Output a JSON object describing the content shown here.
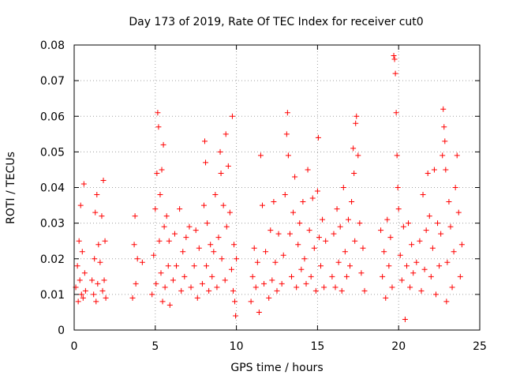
{
  "chart_data": {
    "type": "scatter",
    "title": "Day 173 of 2019, Rate Of TEC Index for receiver cut0",
    "xlabel": "GPS time / hours",
    "ylabel": "ROTI / TECUs",
    "xlim": [
      0,
      25
    ],
    "ylim": [
      0,
      0.08
    ],
    "x_ticks": [
      0,
      5,
      10,
      15,
      20,
      25
    ],
    "x_tick_labels": [
      "0",
      "5",
      "10",
      "15",
      "20",
      "25"
    ],
    "y_ticks": [
      0,
      0.01,
      0.02,
      0.03,
      0.04,
      0.05,
      0.06,
      0.07,
      0.08
    ],
    "y_tick_labels": [
      "0",
      "0.01",
      "0.02",
      "0.03",
      "0.04",
      "0.05",
      "0.06",
      "0.07",
      "0.08"
    ],
    "grid": true,
    "marker": "+",
    "color": "#ff0000",
    "series": [
      {
        "name": "ROTI",
        "points": [
          [
            0.1,
            0.012
          ],
          [
            0.2,
            0.018
          ],
          [
            0.25,
            0.008
          ],
          [
            0.3,
            0.025
          ],
          [
            0.35,
            0.014
          ],
          [
            0.4,
            0.035
          ],
          [
            0.45,
            0.01
          ],
          [
            0.5,
            0.022
          ],
          [
            0.55,
            0.009
          ],
          [
            0.6,
            0.041
          ],
          [
            0.65,
            0.016
          ],
          [
            0.7,
            0.011
          ],
          [
            1.1,
            0.014
          ],
          [
            1.2,
            0.01
          ],
          [
            1.25,
            0.02
          ],
          [
            1.3,
            0.033
          ],
          [
            1.35,
            0.008
          ],
          [
            1.4,
            0.038
          ],
          [
            1.45,
            0.013
          ],
          [
            1.5,
            0.024
          ],
          [
            1.6,
            0.019
          ],
          [
            1.7,
            0.032
          ],
          [
            1.75,
            0.011
          ],
          [
            1.8,
            0.042
          ],
          [
            1.85,
            0.014
          ],
          [
            1.9,
            0.025
          ],
          [
            1.95,
            0.009
          ],
          [
            3.6,
            0.009
          ],
          [
            3.7,
            0.024
          ],
          [
            3.75,
            0.032
          ],
          [
            3.8,
            0.013
          ],
          [
            3.9,
            0.02
          ],
          [
            4.2,
            0.019
          ],
          [
            4.8,
            0.01
          ],
          [
            4.9,
            0.021
          ],
          [
            5.0,
            0.034
          ],
          [
            5.05,
            0.013
          ],
          [
            5.1,
            0.044
          ],
          [
            5.15,
            0.061
          ],
          [
            5.2,
            0.057
          ],
          [
            5.25,
            0.025
          ],
          [
            5.3,
            0.038
          ],
          [
            5.35,
            0.016
          ],
          [
            5.4,
            0.045
          ],
          [
            5.45,
            0.008
          ],
          [
            5.5,
            0.052
          ],
          [
            5.55,
            0.029
          ],
          [
            5.6,
            0.012
          ],
          [
            5.7,
            0.032
          ],
          [
            5.8,
            0.018
          ],
          [
            5.85,
            0.025
          ],
          [
            5.9,
            0.007
          ],
          [
            6.1,
            0.014
          ],
          [
            6.2,
            0.027
          ],
          [
            6.3,
            0.018
          ],
          [
            6.5,
            0.034
          ],
          [
            6.6,
            0.011
          ],
          [
            6.7,
            0.022
          ],
          [
            6.8,
            0.015
          ],
          [
            6.9,
            0.026
          ],
          [
            7.1,
            0.029
          ],
          [
            7.2,
            0.012
          ],
          [
            7.4,
            0.018
          ],
          [
            7.5,
            0.028
          ],
          [
            7.6,
            0.009
          ],
          [
            7.7,
            0.023
          ],
          [
            7.9,
            0.013
          ],
          [
            8.0,
            0.035
          ],
          [
            8.05,
            0.053
          ],
          [
            8.1,
            0.047
          ],
          [
            8.15,
            0.018
          ],
          [
            8.2,
            0.03
          ],
          [
            8.3,
            0.011
          ],
          [
            8.4,
            0.024
          ],
          [
            8.5,
            0.015
          ],
          [
            8.6,
            0.022
          ],
          [
            8.7,
            0.038
          ],
          [
            8.8,
            0.012
          ],
          [
            8.9,
            0.026
          ],
          [
            9.0,
            0.05
          ],
          [
            9.05,
            0.044
          ],
          [
            9.1,
            0.02
          ],
          [
            9.2,
            0.035
          ],
          [
            9.3,
            0.014
          ],
          [
            9.35,
            0.055
          ],
          [
            9.4,
            0.029
          ],
          [
            9.5,
            0.046
          ],
          [
            9.6,
            0.033
          ],
          [
            9.7,
            0.017
          ],
          [
            9.75,
            0.06
          ],
          [
            9.8,
            0.011
          ],
          [
            9.85,
            0.024
          ],
          [
            9.9,
            0.008
          ],
          [
            9.95,
            0.004
          ],
          [
            10.0,
            0.02
          ],
          [
            10.9,
            0.008
          ],
          [
            11.0,
            0.015
          ],
          [
            11.1,
            0.023
          ],
          [
            11.2,
            0.012
          ],
          [
            11.3,
            0.019
          ],
          [
            11.4,
            0.005
          ],
          [
            11.5,
            0.049
          ],
          [
            11.6,
            0.035
          ],
          [
            11.7,
            0.013
          ],
          [
            11.8,
            0.022
          ],
          [
            12.0,
            0.009
          ],
          [
            12.1,
            0.028
          ],
          [
            12.2,
            0.014
          ],
          [
            12.3,
            0.036
          ],
          [
            12.4,
            0.019
          ],
          [
            12.5,
            0.011
          ],
          [
            12.6,
            0.027
          ],
          [
            12.8,
            0.013
          ],
          [
            12.9,
            0.021
          ],
          [
            13.0,
            0.038
          ],
          [
            13.1,
            0.055
          ],
          [
            13.15,
            0.061
          ],
          [
            13.2,
            0.049
          ],
          [
            13.3,
            0.027
          ],
          [
            13.4,
            0.015
          ],
          [
            13.5,
            0.033
          ],
          [
            13.6,
            0.043
          ],
          [
            13.7,
            0.012
          ],
          [
            13.8,
            0.024
          ],
          [
            13.9,
            0.03
          ],
          [
            14.0,
            0.017
          ],
          [
            14.1,
            0.036
          ],
          [
            14.2,
            0.02
          ],
          [
            14.3,
            0.013
          ],
          [
            14.4,
            0.045
          ],
          [
            14.5,
            0.028
          ],
          [
            14.6,
            0.015
          ],
          [
            14.7,
            0.037
          ],
          [
            14.8,
            0.023
          ],
          [
            14.9,
            0.011
          ],
          [
            15.0,
            0.039
          ],
          [
            15.05,
            0.054
          ],
          [
            15.1,
            0.026
          ],
          [
            15.2,
            0.018
          ],
          [
            15.3,
            0.031
          ],
          [
            15.4,
            0.012
          ],
          [
            15.5,
            0.025
          ],
          [
            15.9,
            0.015
          ],
          [
            16.0,
            0.027
          ],
          [
            16.1,
            0.012
          ],
          [
            16.2,
            0.034
          ],
          [
            16.3,
            0.019
          ],
          [
            16.4,
            0.029
          ],
          [
            16.5,
            0.011
          ],
          [
            16.6,
            0.04
          ],
          [
            16.7,
            0.022
          ],
          [
            16.8,
            0.015
          ],
          [
            16.9,
            0.031
          ],
          [
            17.0,
            0.018
          ],
          [
            17.1,
            0.036
          ],
          [
            17.2,
            0.051
          ],
          [
            17.25,
            0.044
          ],
          [
            17.3,
            0.025
          ],
          [
            17.35,
            0.058
          ],
          [
            17.4,
            0.06
          ],
          [
            17.5,
            0.049
          ],
          [
            17.6,
            0.03
          ],
          [
            17.7,
            0.016
          ],
          [
            17.8,
            0.023
          ],
          [
            17.9,
            0.011
          ],
          [
            18.9,
            0.028
          ],
          [
            19.0,
            0.015
          ],
          [
            19.1,
            0.022
          ],
          [
            19.2,
            0.009
          ],
          [
            19.3,
            0.031
          ],
          [
            19.4,
            0.018
          ],
          [
            19.5,
            0.026
          ],
          [
            19.6,
            0.012
          ],
          [
            19.7,
            0.077
          ],
          [
            19.75,
            0.076
          ],
          [
            19.8,
            0.072
          ],
          [
            19.85,
            0.061
          ],
          [
            19.9,
            0.049
          ],
          [
            19.95,
            0.04
          ],
          [
            20.0,
            0.034
          ],
          [
            20.1,
            0.021
          ],
          [
            20.2,
            0.014
          ],
          [
            20.3,
            0.029
          ],
          [
            20.4,
            0.003
          ],
          [
            20.5,
            0.018
          ],
          [
            20.6,
            0.03
          ],
          [
            20.7,
            0.012
          ],
          [
            20.8,
            0.024
          ],
          [
            20.9,
            0.016
          ],
          [
            21.1,
            0.019
          ],
          [
            21.3,
            0.025
          ],
          [
            21.4,
            0.011
          ],
          [
            21.5,
            0.038
          ],
          [
            21.6,
            0.017
          ],
          [
            21.7,
            0.028
          ],
          [
            21.8,
            0.044
          ],
          [
            21.9,
            0.032
          ],
          [
            22.0,
            0.015
          ],
          [
            22.1,
            0.023
          ],
          [
            22.2,
            0.045
          ],
          [
            22.3,
            0.01
          ],
          [
            22.4,
            0.03
          ],
          [
            22.5,
            0.018
          ],
          [
            22.6,
            0.027
          ],
          [
            22.7,
            0.049
          ],
          [
            22.75,
            0.062
          ],
          [
            22.8,
            0.057
          ],
          [
            22.85,
            0.053
          ],
          [
            22.9,
            0.045
          ],
          [
            22.95,
            0.008
          ],
          [
            23.0,
            0.019
          ],
          [
            23.1,
            0.036
          ],
          [
            23.2,
            0.029
          ],
          [
            23.3,
            0.012
          ],
          [
            23.4,
            0.022
          ],
          [
            23.5,
            0.04
          ],
          [
            23.6,
            0.049
          ],
          [
            23.7,
            0.033
          ],
          [
            23.8,
            0.015
          ],
          [
            23.9,
            0.024
          ]
        ]
      }
    ]
  }
}
